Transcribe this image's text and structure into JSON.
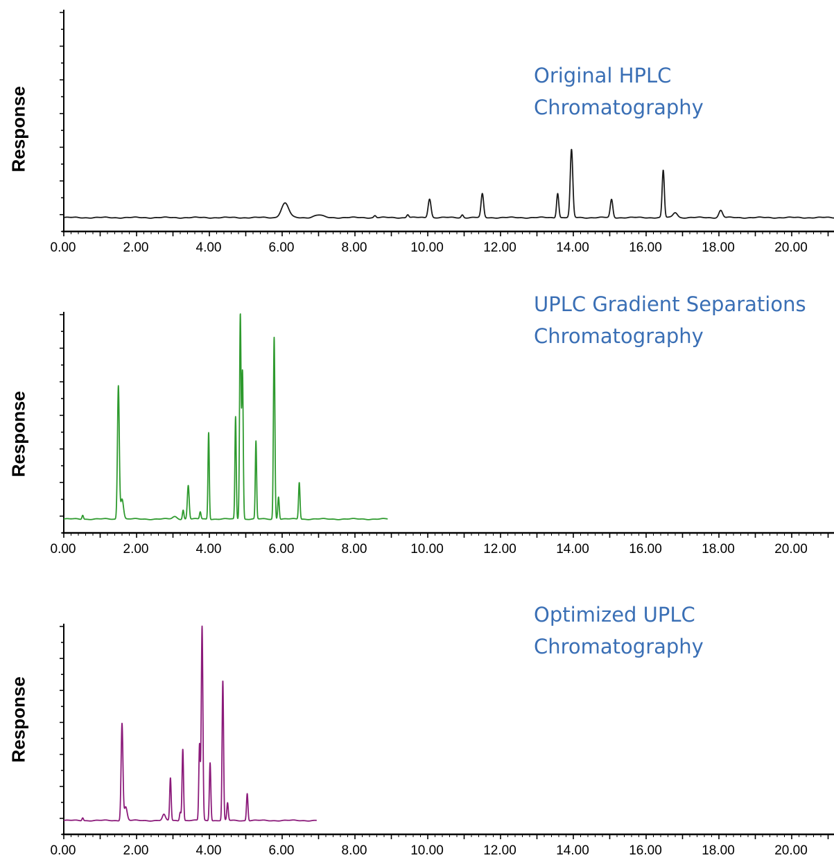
{
  "chart_data": [
    {
      "type": "line",
      "id": "hplc",
      "color": "#1a1a1a",
      "ylabel": "Response",
      "annotation": [
        "Original HPLC",
        "Chromatography"
      ],
      "xlim": [
        0,
        21.3
      ],
      "ylim": [
        0,
        1
      ],
      "xticks": [
        "0.00",
        "2.00",
        "4.00",
        "6.00",
        "8.00",
        "10.00",
        "12.00",
        "14.00",
        "16.00",
        "18.00",
        "20.00"
      ],
      "x_end": 21.3,
      "peaks": [
        {
          "x": 6.08,
          "y": 0.07,
          "w": 0.1
        },
        {
          "x": 7.0,
          "y": 0.012,
          "w": 0.12
        },
        {
          "x": 8.55,
          "y": 0.01,
          "w": 0.03
        },
        {
          "x": 9.45,
          "y": 0.015,
          "w": 0.03
        },
        {
          "x": 10.05,
          "y": 0.092,
          "w": 0.04
        },
        {
          "x": 10.95,
          "y": 0.014,
          "w": 0.03
        },
        {
          "x": 11.5,
          "y": 0.115,
          "w": 0.035
        },
        {
          "x": 13.57,
          "y": 0.12,
          "w": 0.03
        },
        {
          "x": 13.95,
          "y": 0.33,
          "w": 0.035
        },
        {
          "x": 15.05,
          "y": 0.088,
          "w": 0.035
        },
        {
          "x": 16.47,
          "y": 0.23,
          "w": 0.03
        },
        {
          "x": 16.8,
          "y": 0.025,
          "w": 0.06
        },
        {
          "x": 18.05,
          "y": 0.035,
          "w": 0.05
        }
      ]
    },
    {
      "type": "line",
      "id": "uplc-gradient",
      "color": "#2e9a2e",
      "ylabel": "Response",
      "annotation": [
        "UPLC Gradient Separations",
        "Chromatography"
      ],
      "xlim": [
        0,
        21.3
      ],
      "ylim": [
        0,
        1
      ],
      "xticks": [
        "0.00",
        "2.00",
        "4.00",
        "6.00",
        "8.00",
        "10.00",
        "12.00",
        "14.00",
        "16.00",
        "18.00",
        "20.00"
      ],
      "x_end": 8.9,
      "peaks": [
        {
          "x": 0.52,
          "y": 0.02,
          "w": 0.02
        },
        {
          "x": 1.5,
          "y": 0.65,
          "w": 0.025
        },
        {
          "x": 1.6,
          "y": 0.1,
          "w": 0.04
        },
        {
          "x": 3.05,
          "y": 0.012,
          "w": 0.06
        },
        {
          "x": 3.28,
          "y": 0.045,
          "w": 0.02
        },
        {
          "x": 3.42,
          "y": 0.165,
          "w": 0.025
        },
        {
          "x": 3.75,
          "y": 0.035,
          "w": 0.02
        },
        {
          "x": 3.98,
          "y": 0.425,
          "w": 0.018
        },
        {
          "x": 4.72,
          "y": 0.5,
          "w": 0.018
        },
        {
          "x": 4.85,
          "y": 1.0,
          "w": 0.02
        },
        {
          "x": 4.91,
          "y": 0.72,
          "w": 0.02
        },
        {
          "x": 5.28,
          "y": 0.38,
          "w": 0.018
        },
        {
          "x": 5.78,
          "y": 0.89,
          "w": 0.02
        },
        {
          "x": 5.9,
          "y": 0.11,
          "w": 0.02
        },
        {
          "x": 6.47,
          "y": 0.18,
          "w": 0.02
        }
      ]
    },
    {
      "type": "line",
      "id": "uplc-optimized",
      "color": "#8b1a7a",
      "ylabel": "Response",
      "annotation": [
        "Optimized UPLC",
        "Chromatography"
      ],
      "xlim": [
        0,
        21.3
      ],
      "ylim": [
        0,
        1
      ],
      "xticks": [
        "0.00",
        "2.00",
        "4.00",
        "6.00",
        "8.00",
        "10.00",
        "12.00",
        "14.00",
        "16.00",
        "18.00",
        "20.00"
      ],
      "x_end": 6.95,
      "peaks": [
        {
          "x": 0.52,
          "y": 0.015,
          "w": 0.02
        },
        {
          "x": 1.6,
          "y": 0.5,
          "w": 0.025
        },
        {
          "x": 1.7,
          "y": 0.07,
          "w": 0.04
        },
        {
          "x": 2.75,
          "y": 0.03,
          "w": 0.04
        },
        {
          "x": 2.93,
          "y": 0.22,
          "w": 0.02
        },
        {
          "x": 3.2,
          "y": 0.045,
          "w": 0.02
        },
        {
          "x": 3.27,
          "y": 0.37,
          "w": 0.02
        },
        {
          "x": 3.73,
          "y": 0.39,
          "w": 0.02
        },
        {
          "x": 3.8,
          "y": 1.0,
          "w": 0.022
        },
        {
          "x": 4.02,
          "y": 0.3,
          "w": 0.02
        },
        {
          "x": 4.37,
          "y": 0.72,
          "w": 0.02
        },
        {
          "x": 4.5,
          "y": 0.09,
          "w": 0.02
        },
        {
          "x": 5.04,
          "y": 0.14,
          "w": 0.02
        }
      ]
    }
  ]
}
